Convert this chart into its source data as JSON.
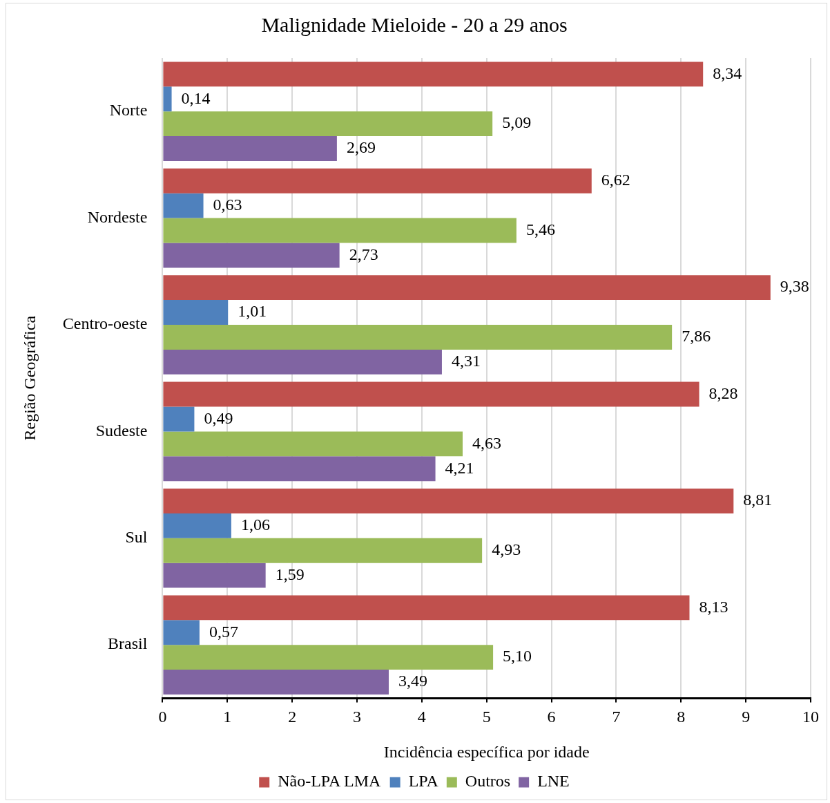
{
  "chart_data": {
    "type": "bar",
    "orientation": "horizontal",
    "title": "Malignidade Mieloide - 20 a 29 anos",
    "xlabel": "Incidência específica por idade",
    "ylabel": "Região Geográfica",
    "categories": [
      "Norte",
      "Nordeste",
      "Centro-oeste",
      "Sudeste",
      "Sul",
      "Brasil"
    ],
    "series": [
      {
        "name": "Não-LPA LMA",
        "color": "#c0504d",
        "values": [
          8.34,
          6.62,
          9.38,
          8.28,
          8.81,
          8.13
        ],
        "value_labels": [
          "8,34",
          "6,62",
          "9,38",
          "8,28",
          "8,81",
          "8,13"
        ]
      },
      {
        "name": "LPA",
        "color": "#4f81bd",
        "values": [
          0.14,
          0.63,
          1.01,
          0.49,
          1.06,
          0.57
        ],
        "value_labels": [
          "0,14",
          "0,63",
          "1,01",
          "0,49",
          "1,06",
          "0,57"
        ]
      },
      {
        "name": "Outros",
        "color": "#9bbb59",
        "values": [
          5.09,
          5.46,
          7.86,
          4.63,
          4.93,
          5.1
        ],
        "value_labels": [
          "5,09",
          "5,46",
          "7,86",
          "4,63",
          "4,93",
          "5,10"
        ]
      },
      {
        "name": "LNE",
        "color": "#8064a2",
        "values": [
          2.69,
          2.73,
          4.31,
          4.21,
          1.59,
          3.49
        ],
        "value_labels": [
          "2,69",
          "2,73",
          "4,31",
          "4,21",
          "1,59",
          "3,49"
        ]
      }
    ],
    "xlim": [
      0,
      10
    ],
    "xticks": [
      0,
      1,
      2,
      3,
      4,
      5,
      6,
      7,
      8,
      9,
      10
    ],
    "grid": "x",
    "legend": "bottom"
  }
}
